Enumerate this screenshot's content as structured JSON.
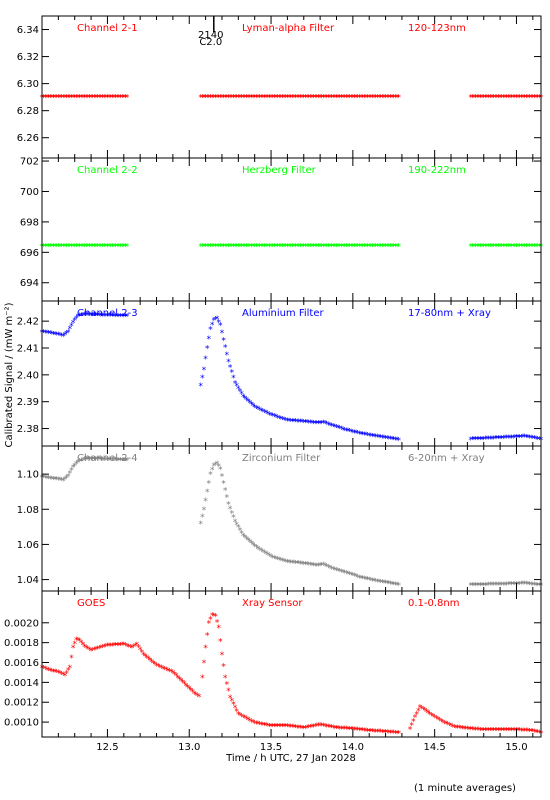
{
  "figure": {
    "ylabel": "Calibrated Signal / (mW m⁻²)",
    "xlabel": "Time / h UTC, 27 Jan 2028",
    "footnote": "(1 minute averages)",
    "marker": {
      "label": "2140",
      "sublabel": "C2.0",
      "x": 13.15
    }
  },
  "chart_data": [
    {
      "type": "scatter",
      "channel": "Channel 2-1",
      "filter": "Lyman-alpha Filter",
      "band": "120-123nm",
      "color": "#ff0000",
      "xlim": [
        12.1,
        15.15
      ],
      "ylim": [
        6.245,
        6.35
      ],
      "yticks": [
        6.26,
        6.28,
        6.3,
        6.32,
        6.34
      ],
      "ytick_labels": [
        "6.26",
        "6.28",
        "6.30",
        "6.32",
        "6.34"
      ],
      "segments": [
        {
          "x": [
            12.1,
            12.62
          ],
          "y": [
            6.29,
            6.29
          ]
        },
        {
          "x": [
            13.07,
            14.28
          ],
          "y": [
            6.29,
            6.29
          ]
        },
        {
          "x": [
            14.72,
            15.15
          ],
          "y": [
            6.29,
            6.29
          ]
        }
      ]
    },
    {
      "type": "scatter",
      "channel": "Channel 2-2",
      "filter": "Herzberg Filter",
      "band": "190-222nm",
      "color": "#00ff00",
      "xlim": [
        12.1,
        15.15
      ],
      "ylim": [
        692.8,
        702.2
      ],
      "yticks": [
        694,
        696,
        698,
        700,
        702
      ],
      "ytick_labels": [
        "694",
        "696",
        "698",
        "700",
        "702"
      ],
      "segments": [
        {
          "x": [
            12.1,
            12.62
          ],
          "y": [
            696.4,
            696.4
          ]
        },
        {
          "x": [
            13.07,
            14.28
          ],
          "y": [
            696.4,
            696.4
          ]
        },
        {
          "x": [
            14.72,
            15.15
          ],
          "y": [
            696.4,
            696.4
          ]
        }
      ]
    },
    {
      "type": "scatter",
      "channel": "Channel 2-3",
      "filter": "Aluminium Filter",
      "band": "17-80nm + Xray",
      "color": "#0000ff",
      "xlim": [
        12.1,
        15.15
      ],
      "ylim": [
        2.3735,
        2.4275
      ],
      "yticks": [
        2.38,
        2.39,
        2.4,
        2.41,
        2.42
      ],
      "ytick_labels": [
        "2.38",
        "2.39",
        "2.40",
        "2.41",
        "2.42"
      ],
      "segments": [
        {
          "x": [
            12.1,
            12.15,
            12.2,
            12.23,
            12.26,
            12.29,
            12.32,
            12.36,
            12.45,
            12.55,
            12.62
          ],
          "y": [
            2.416,
            2.4155,
            2.415,
            2.4145,
            2.416,
            2.4195,
            2.422,
            2.4225,
            2.4222,
            2.422,
            2.422
          ]
        },
        {
          "x": [
            13.07,
            13.09,
            13.11,
            13.13,
            13.15,
            13.17,
            13.19,
            13.21,
            13.24,
            13.28,
            13.33,
            13.4,
            13.5,
            13.6,
            13.7,
            13.78,
            13.82,
            13.88,
            13.95,
            14.05,
            14.15,
            14.28
          ],
          "y": [
            2.396,
            2.402,
            2.41,
            2.417,
            2.4205,
            2.421,
            2.4185,
            2.413,
            2.405,
            2.397,
            2.392,
            2.388,
            2.385,
            2.383,
            2.3825,
            2.382,
            2.3822,
            2.381,
            2.3795,
            2.378,
            2.377,
            2.3758
          ]
        },
        {
          "x": [
            14.72,
            14.8,
            14.9,
            15.0,
            15.05,
            15.1,
            15.15
          ],
          "y": [
            2.376,
            2.3762,
            2.3765,
            2.3768,
            2.377,
            2.3765,
            2.376
          ]
        }
      ]
    },
    {
      "type": "scatter",
      "channel": "Channel 2-4",
      "filter": "Zirconium Filter",
      "band": "6-20nm + Xray",
      "color": "#808080",
      "xlim": [
        12.1,
        15.15
      ],
      "ylim": [
        1.0335,
        1.116
      ],
      "yticks": [
        1.04,
        1.06,
        1.08,
        1.1
      ],
      "ytick_labels": [
        "1.04",
        "1.06",
        "1.08",
        "1.10"
      ],
      "segments": [
        {
          "x": [
            12.1,
            12.15,
            12.2,
            12.23,
            12.26,
            12.29,
            12.32,
            12.36,
            12.45,
            12.55,
            12.62
          ],
          "y": [
            1.0985,
            1.0975,
            1.097,
            1.0965,
            1.099,
            1.104,
            1.107,
            1.1085,
            1.1085,
            1.1082,
            1.108
          ]
        },
        {
          "x": [
            13.07,
            13.09,
            13.11,
            13.13,
            13.15,
            13.17,
            13.19,
            13.21,
            13.24,
            13.28,
            13.33,
            13.4,
            13.5,
            13.6,
            13.7,
            13.78,
            13.82,
            13.88,
            13.95,
            14.05,
            14.15,
            14.28
          ],
          "y": [
            1.072,
            1.08,
            1.09,
            1.1,
            1.105,
            1.106,
            1.103,
            1.095,
            1.083,
            1.073,
            1.065,
            1.059,
            1.053,
            1.05,
            1.049,
            1.048,
            1.0485,
            1.046,
            1.044,
            1.041,
            1.039,
            1.037
          ]
        },
        {
          "x": [
            14.72,
            14.8,
            14.9,
            15.0,
            15.05,
            15.1,
            15.15
          ],
          "y": [
            1.037,
            1.037,
            1.0372,
            1.0375,
            1.0378,
            1.0372,
            1.0368
          ]
        }
      ]
    },
    {
      "type": "scatter",
      "channel": "GOES",
      "filter": "Xray Sensor",
      "band": "0.1-0.8nm",
      "color": "#ff0000",
      "xlim": [
        12.1,
        15.15
      ],
      "ylim": [
        0.00085,
        0.00232
      ],
      "yticks": [
        0.001,
        0.0012,
        0.0014,
        0.0016,
        0.0018,
        0.002
      ],
      "ytick_labels": [
        "0.0010",
        "0.0012",
        "0.0014",
        "0.0016",
        "0.0018",
        "0.0020"
      ],
      "segments": [
        {
          "x": [
            12.1,
            12.15,
            12.2,
            12.24,
            12.27,
            12.29,
            12.31,
            12.33,
            12.36,
            12.4,
            12.5,
            12.6,
            12.65,
            12.68,
            12.72,
            12.8,
            12.9,
            12.98,
            13.03,
            13.06
          ],
          "y": [
            0.00155,
            0.00152,
            0.0015,
            0.00147,
            0.00155,
            0.00175,
            0.00183,
            0.00182,
            0.00176,
            0.00172,
            0.00177,
            0.00178,
            0.00175,
            0.00178,
            0.00168,
            0.00157,
            0.0015,
            0.00137,
            0.00129,
            0.00126
          ]
        },
        {
          "x": [
            13.08,
            13.1,
            13.12,
            13.14,
            13.16,
            13.18,
            13.2,
            13.22,
            13.25,
            13.3,
            13.4,
            13.5,
            13.6,
            13.7,
            13.8,
            13.9,
            14.0,
            14.1,
            14.2,
            14.28
          ],
          "y": [
            0.00145,
            0.00175,
            0.002,
            0.00208,
            0.00207,
            0.00195,
            0.00168,
            0.00145,
            0.00125,
            0.00108,
            0.00099,
            0.00096,
            0.00096,
            0.00094,
            0.00097,
            0.00094,
            0.00093,
            0.00091,
            0.0009,
            0.00089
          ]
        },
        {
          "x": [
            14.35,
            14.38,
            14.41,
            14.44,
            14.48,
            14.55,
            14.62,
            14.72,
            14.8,
            14.9,
            15.0,
            15.1,
            15.15
          ],
          "y": [
            0.00093,
            0.00105,
            0.00115,
            0.00112,
            0.00107,
            0.001,
            0.00095,
            0.00093,
            0.00092,
            0.00092,
            0.00092,
            0.00091,
            0.00089
          ]
        }
      ]
    }
  ],
  "xaxis": {
    "xlim": [
      12.1,
      15.15
    ],
    "ticks": [
      12.5,
      13.0,
      13.5,
      14.0,
      14.5,
      15.0
    ],
    "tick_labels": [
      "12.5",
      "13.0",
      "13.5",
      "14.0",
      "14.5",
      "15.0"
    ]
  }
}
